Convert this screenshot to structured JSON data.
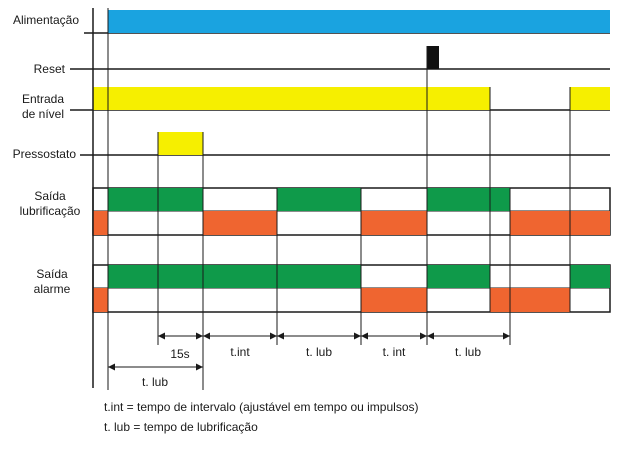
{
  "colors": {
    "power": "#1aa3e0",
    "level": "#f6ef00",
    "pressure": "#f6ef00",
    "reset": "#111111",
    "on": "#0f9a4a",
    "off": "#ef6530",
    "line": "#1a1a1a"
  },
  "signals": {
    "alimentacao": "Alimentação",
    "reset": "Reset",
    "entrada_line1": "Entrada",
    "entrada_line2": "de nível",
    "pressostato": "Pressostato",
    "lubrificacao_line1": "Saída",
    "lubrificacao_line2": "lubrificação",
    "alarme_line1": "Saída",
    "alarme_line2": "alarme"
  },
  "intervals": {
    "s15": "15s",
    "tint_1": "t.int",
    "tlub_1": "t. lub",
    "tint_2": "t. int",
    "tlub_2": "t. lub",
    "tlub_first": "t. lub"
  },
  "notes": {
    "tint": "t.int = tempo de intervalo (ajustável em tempo ou impulsos)",
    "tlub": "t. lub = tempo de lubrificação"
  }
}
